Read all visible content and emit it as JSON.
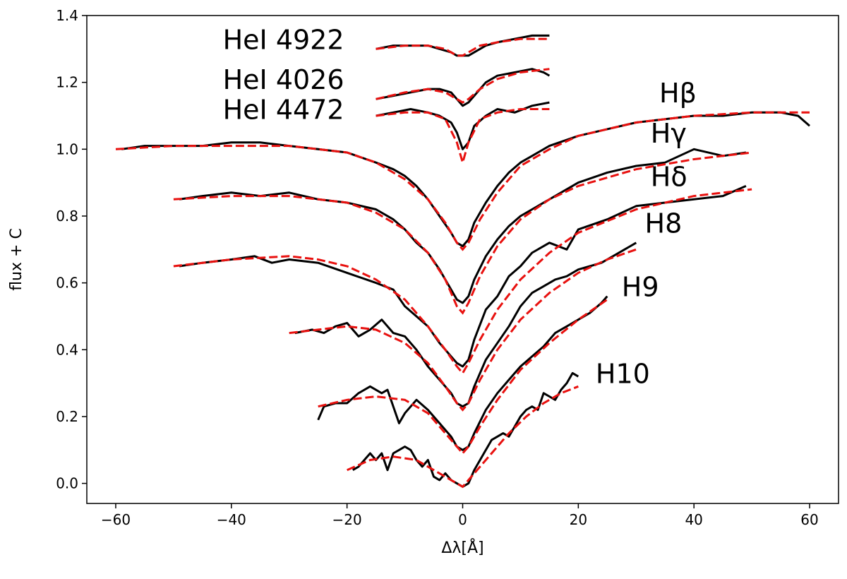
{
  "chart_data": {
    "type": "line",
    "title": "",
    "xlabel": "Δλ[Å]",
    "ylabel": "flux + C",
    "xlim": [
      -65,
      65
    ],
    "ylim": [
      -0.06,
      1.4
    ],
    "xticks": [
      -60,
      -40,
      -20,
      0,
      20,
      40,
      60
    ],
    "xtick_labels": [
      "−60",
      "−40",
      "−20",
      "0",
      "20",
      "40",
      "60"
    ],
    "yticks": [
      0.0,
      0.2,
      0.4,
      0.6,
      0.8,
      1.0,
      1.2,
      1.4
    ],
    "ytick_labels": [
      "0.0",
      "0.2",
      "0.4",
      "0.6",
      "0.8",
      "1.0",
      "1.2",
      "1.4"
    ],
    "grid": false,
    "legend": "none",
    "colors": {
      "observed": "#000000",
      "model": "#e8110f"
    },
    "series": [
      {
        "name": "HeI 4922",
        "observed": {
          "x": [
            -15,
            -12,
            -9,
            -6,
            -4,
            -2,
            -1,
            0,
            1,
            2,
            4,
            6,
            9,
            12,
            15
          ],
          "y": [
            1.3,
            1.31,
            1.31,
            1.31,
            1.3,
            1.29,
            1.28,
            1.28,
            1.28,
            1.29,
            1.31,
            1.32,
            1.33,
            1.34,
            1.34
          ]
        },
        "model": {
          "x": [
            -15,
            -10,
            -6,
            -3,
            -1,
            0,
            1,
            3,
            6,
            10,
            15
          ],
          "y": [
            1.3,
            1.31,
            1.31,
            1.3,
            1.28,
            1.28,
            1.29,
            1.31,
            1.32,
            1.33,
            1.33
          ]
        }
      },
      {
        "name": "HeI 4026",
        "observed": {
          "x": [
            -15,
            -12,
            -9,
            -6,
            -4,
            -2,
            -1,
            0,
            1,
            2,
            4,
            6,
            9,
            12,
            14,
            15
          ],
          "y": [
            1.15,
            1.16,
            1.17,
            1.18,
            1.18,
            1.17,
            1.15,
            1.13,
            1.14,
            1.16,
            1.2,
            1.22,
            1.23,
            1.24,
            1.23,
            1.22
          ]
        },
        "model": {
          "x": [
            -15,
            -10,
            -6,
            -3,
            -1,
            0,
            1,
            3,
            6,
            10,
            15
          ],
          "y": [
            1.15,
            1.17,
            1.18,
            1.17,
            1.15,
            1.14,
            1.15,
            1.18,
            1.21,
            1.23,
            1.24
          ]
        }
      },
      {
        "name": "HeI 4472",
        "observed": {
          "x": [
            -15,
            -12,
            -9,
            -6,
            -4,
            -2,
            -1,
            0,
            1,
            2,
            4,
            6,
            9,
            12,
            15
          ],
          "y": [
            1.1,
            1.11,
            1.12,
            1.11,
            1.1,
            1.08,
            1.05,
            1.0,
            1.02,
            1.07,
            1.1,
            1.12,
            1.11,
            1.13,
            1.14
          ]
        },
        "model": {
          "x": [
            -15,
            -10,
            -6,
            -3,
            -1,
            0,
            1,
            3,
            6,
            10,
            15
          ],
          "y": [
            1.1,
            1.11,
            1.11,
            1.09,
            1.02,
            0.96,
            1.02,
            1.09,
            1.11,
            1.12,
            1.12
          ]
        }
      },
      {
        "name": "Hβ",
        "observed": {
          "x": [
            -59,
            -55,
            -50,
            -45,
            -40,
            -35,
            -30,
            -25,
            -20,
            -15,
            -12,
            -10,
            -8,
            -6,
            -4,
            -2,
            -1,
            0,
            1,
            2,
            4,
            6,
            8,
            10,
            12,
            15,
            20,
            25,
            30,
            35,
            40,
            45,
            50,
            55,
            58,
            60
          ],
          "y": [
            1.0,
            1.01,
            1.01,
            1.01,
            1.02,
            1.02,
            1.01,
            1.0,
            0.99,
            0.96,
            0.94,
            0.92,
            0.89,
            0.85,
            0.8,
            0.75,
            0.72,
            0.71,
            0.73,
            0.78,
            0.84,
            0.89,
            0.93,
            0.96,
            0.98,
            1.01,
            1.04,
            1.06,
            1.08,
            1.09,
            1.1,
            1.1,
            1.11,
            1.11,
            1.1,
            1.07
          ]
        },
        "model": {
          "x": [
            -60,
            -50,
            -40,
            -30,
            -25,
            -20,
            -15,
            -10,
            -6,
            -3,
            -1,
            0,
            1,
            3,
            6,
            10,
            15,
            20,
            30,
            40,
            50,
            60
          ],
          "y": [
            1.0,
            1.01,
            1.01,
            1.01,
            1.0,
            0.99,
            0.96,
            0.91,
            0.85,
            0.78,
            0.72,
            0.7,
            0.72,
            0.79,
            0.87,
            0.95,
            1.0,
            1.04,
            1.08,
            1.1,
            1.11,
            1.11
          ]
        }
      },
      {
        "name": "Hγ",
        "observed": {
          "x": [
            -49,
            -45,
            -40,
            -35,
            -30,
            -25,
            -20,
            -15,
            -12,
            -10,
            -8,
            -6,
            -4,
            -2,
            -1,
            0,
            1,
            2,
            4,
            6,
            8,
            10,
            15,
            20,
            25,
            30,
            35,
            40,
            45,
            49
          ],
          "y": [
            0.85,
            0.86,
            0.87,
            0.86,
            0.87,
            0.85,
            0.84,
            0.82,
            0.79,
            0.76,
            0.72,
            0.69,
            0.64,
            0.58,
            0.55,
            0.54,
            0.56,
            0.61,
            0.68,
            0.73,
            0.77,
            0.8,
            0.85,
            0.9,
            0.93,
            0.95,
            0.96,
            1.0,
            0.98,
            0.99
          ]
        },
        "model": {
          "x": [
            -50,
            -40,
            -30,
            -25,
            -20,
            -15,
            -10,
            -6,
            -3,
            -1,
            0,
            1,
            3,
            6,
            10,
            15,
            20,
            30,
            40,
            50
          ],
          "y": [
            0.85,
            0.86,
            0.86,
            0.85,
            0.84,
            0.81,
            0.76,
            0.69,
            0.61,
            0.53,
            0.51,
            0.54,
            0.62,
            0.71,
            0.79,
            0.85,
            0.89,
            0.94,
            0.97,
            0.99
          ]
        }
      },
      {
        "name": "Hδ",
        "observed": {
          "x": [
            -49,
            -45,
            -40,
            -36,
            -33,
            -30,
            -25,
            -20,
            -15,
            -12,
            -10,
            -8,
            -6,
            -4,
            -2,
            -1,
            0,
            1,
            2,
            4,
            6,
            8,
            10,
            12,
            15,
            18,
            20,
            25,
            30,
            35,
            40,
            45,
            49
          ],
          "y": [
            0.65,
            0.66,
            0.67,
            0.68,
            0.66,
            0.67,
            0.66,
            0.63,
            0.6,
            0.58,
            0.53,
            0.5,
            0.47,
            0.42,
            0.38,
            0.36,
            0.35,
            0.37,
            0.43,
            0.52,
            0.56,
            0.62,
            0.65,
            0.69,
            0.72,
            0.7,
            0.76,
            0.79,
            0.83,
            0.84,
            0.85,
            0.86,
            0.89
          ]
        },
        "model": {
          "x": [
            -50,
            -40,
            -30,
            -25,
            -20,
            -15,
            -10,
            -6,
            -3,
            -1,
            0,
            1,
            3,
            6,
            10,
            15,
            20,
            30,
            40,
            50
          ],
          "y": [
            0.65,
            0.67,
            0.68,
            0.67,
            0.65,
            0.61,
            0.55,
            0.47,
            0.4,
            0.35,
            0.33,
            0.36,
            0.43,
            0.52,
            0.61,
            0.69,
            0.75,
            0.82,
            0.86,
            0.88
          ]
        }
      },
      {
        "name": "H8",
        "observed": {
          "x": [
            -29,
            -26,
            -24,
            -22,
            -20,
            -18,
            -16,
            -14,
            -12,
            -10,
            -8,
            -6,
            -4,
            -2,
            -1,
            0,
            1,
            2,
            4,
            6,
            8,
            10,
            12,
            14,
            16,
            18,
            20,
            22,
            24,
            26,
            28,
            30
          ],
          "y": [
            0.45,
            0.46,
            0.45,
            0.47,
            0.48,
            0.44,
            0.46,
            0.49,
            0.45,
            0.44,
            0.4,
            0.35,
            0.31,
            0.27,
            0.24,
            0.23,
            0.24,
            0.29,
            0.37,
            0.42,
            0.47,
            0.53,
            0.57,
            0.59,
            0.61,
            0.62,
            0.64,
            0.65,
            0.66,
            0.68,
            0.7,
            0.72
          ]
        },
        "model": {
          "x": [
            -30,
            -25,
            -20,
            -15,
            -10,
            -6,
            -3,
            -1,
            0,
            1,
            3,
            6,
            10,
            15,
            20,
            25,
            30
          ],
          "y": [
            0.45,
            0.46,
            0.47,
            0.46,
            0.42,
            0.36,
            0.29,
            0.24,
            0.22,
            0.24,
            0.31,
            0.4,
            0.49,
            0.57,
            0.63,
            0.67,
            0.7
          ]
        }
      },
      {
        "name": "H9",
        "observed": {
          "x": [
            -25,
            -24,
            -22,
            -20,
            -18,
            -16,
            -14,
            -13,
            -12,
            -11,
            -10,
            -8,
            -6,
            -4,
            -2,
            -1,
            0,
            1,
            2,
            4,
            6,
            8,
            10,
            12,
            14,
            16,
            18,
            20,
            22,
            24,
            25
          ],
          "y": [
            0.19,
            0.23,
            0.24,
            0.24,
            0.27,
            0.29,
            0.27,
            0.28,
            0.23,
            0.18,
            0.21,
            0.25,
            0.22,
            0.18,
            0.14,
            0.11,
            0.1,
            0.11,
            0.15,
            0.22,
            0.27,
            0.31,
            0.35,
            0.38,
            0.41,
            0.45,
            0.47,
            0.49,
            0.51,
            0.54,
            0.56
          ]
        },
        "model": {
          "x": [
            -25,
            -20,
            -15,
            -10,
            -6,
            -3,
            -1,
            0,
            1,
            3,
            6,
            10,
            15,
            20,
            25
          ],
          "y": [
            0.23,
            0.25,
            0.26,
            0.25,
            0.21,
            0.15,
            0.11,
            0.09,
            0.11,
            0.17,
            0.25,
            0.34,
            0.42,
            0.49,
            0.55
          ]
        }
      },
      {
        "name": "H10",
        "observed": {
          "x": [
            -19,
            -18,
            -16,
            -15,
            -14,
            -13,
            -12,
            -11,
            -10,
            -9,
            -8,
            -7,
            -6,
            -5,
            -4,
            -3,
            -2,
            -1,
            0,
            1,
            2,
            3,
            4,
            5,
            6,
            7,
            8,
            9,
            10,
            11,
            12,
            13,
            14,
            15,
            16,
            17,
            18,
            19,
            20
          ],
          "y": [
            0.04,
            0.05,
            0.09,
            0.07,
            0.09,
            0.04,
            0.09,
            0.1,
            0.11,
            0.1,
            0.07,
            0.05,
            0.07,
            0.02,
            0.01,
            0.03,
            0.01,
            0.0,
            -0.01,
            0.0,
            0.04,
            0.07,
            0.1,
            0.13,
            0.14,
            0.15,
            0.14,
            0.17,
            0.2,
            0.22,
            0.23,
            0.22,
            0.27,
            0.26,
            0.25,
            0.28,
            0.3,
            0.33,
            0.32
          ]
        },
        "model": {
          "x": [
            -20,
            -16,
            -12,
            -8,
            -5,
            -3,
            -1,
            0,
            1,
            3,
            5,
            8,
            11,
            14,
            17,
            20
          ],
          "y": [
            0.04,
            0.07,
            0.08,
            0.07,
            0.04,
            0.02,
            0.0,
            -0.01,
            0.01,
            0.05,
            0.09,
            0.15,
            0.2,
            0.24,
            0.27,
            0.29
          ]
        }
      }
    ],
    "line_labels": [
      {
        "text": "HeI 4922",
        "x": -20.5,
        "y": 1.3,
        "anchor": "end"
      },
      {
        "text": "HeI 4026",
        "x": -20.5,
        "y": 1.18,
        "anchor": "end"
      },
      {
        "text": "HeI 4472",
        "x": -20.5,
        "y": 1.09,
        "anchor": "end"
      },
      {
        "text": "Hβ",
        "x": 34,
        "y": 1.14,
        "anchor": "start"
      },
      {
        "text": "Hγ",
        "x": 32.5,
        "y": 1.02,
        "anchor": "start"
      },
      {
        "text": "Hδ",
        "x": 32.5,
        "y": 0.89,
        "anchor": "start"
      },
      {
        "text": "H8",
        "x": 31.5,
        "y": 0.75,
        "anchor": "start"
      },
      {
        "text": "H9",
        "x": 27.5,
        "y": 0.56,
        "anchor": "start"
      },
      {
        "text": "H10",
        "x": 23,
        "y": 0.3,
        "anchor": "start"
      }
    ]
  }
}
